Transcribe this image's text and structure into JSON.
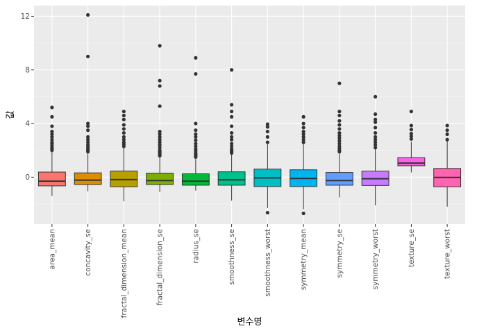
{
  "chart_data": {
    "type": "boxplot",
    "xlabel": "변수명",
    "ylabel": "값",
    "ylim": [
      -3.5,
      12.8
    ],
    "yticks": [
      0,
      4,
      8,
      12
    ],
    "grid": true,
    "legend": "none",
    "categories": [
      "area_mean",
      "concavity_se",
      "fractal_dimension_mean",
      "fractal_dimension_se",
      "radius_se",
      "smoothness_se",
      "smoothness_worst",
      "symmetry_mean",
      "symmetry_se",
      "symmetry_worst",
      "texture_se",
      "texture_worst"
    ],
    "colors": [
      "#F8766D",
      "#DE8C00",
      "#B79F00",
      "#7CAE00",
      "#00BA38",
      "#00C08B",
      "#00BFC4",
      "#00B4F0",
      "#619CFF",
      "#C77CFF",
      "#F564E3",
      "#FF64B0"
    ],
    "boxes": [
      {
        "whisker_low": -1.4,
        "q1": -0.65,
        "median": -0.3,
        "q3": 0.38,
        "whisker_high": 1.95,
        "outliers": [
          2.0,
          2.1,
          2.2,
          2.35,
          2.5,
          2.6,
          2.8,
          3.0,
          3.2,
          3.4,
          3.8,
          4.5,
          5.2
        ]
      },
      {
        "whisker_low": -1.05,
        "q1": -0.55,
        "median": -0.22,
        "q3": 0.32,
        "whisker_high": 1.85,
        "outliers": [
          1.9,
          2.0,
          2.1,
          2.25,
          2.4,
          2.6,
          2.8,
          3.0,
          3.5,
          3.8,
          4.0,
          9.0,
          12.1
        ]
      },
      {
        "whisker_low": -1.8,
        "q1": -0.72,
        "median": -0.18,
        "q3": 0.46,
        "whisker_high": 2.2,
        "outliers": [
          2.3,
          2.45,
          2.6,
          2.8,
          3.0,
          3.3,
          3.6,
          3.9,
          4.3,
          4.6,
          4.9
        ]
      },
      {
        "whisker_low": -1.1,
        "q1": -0.55,
        "median": -0.25,
        "q3": 0.3,
        "whisker_high": 1.5,
        "outliers": [
          1.6,
          1.7,
          1.8,
          1.9,
          2.0,
          2.2,
          2.4,
          2.6,
          2.8,
          3.0,
          3.2,
          3.4,
          5.3,
          6.8,
          7.2,
          9.8
        ]
      },
      {
        "whisker_low": -1.0,
        "q1": -0.6,
        "median": -0.3,
        "q3": 0.25,
        "whisker_high": 1.35,
        "outliers": [
          1.5,
          1.6,
          1.7,
          1.8,
          1.95,
          2.1,
          2.3,
          2.5,
          2.75,
          3.0,
          3.2,
          3.5,
          4.0,
          7.7,
          8.9
        ]
      },
      {
        "whisker_low": -1.75,
        "q1": -0.6,
        "median": -0.2,
        "q3": 0.4,
        "whisker_high": 1.75,
        "outliers": [
          1.8,
          1.9,
          2.0,
          2.1,
          2.3,
          2.5,
          2.8,
          3.0,
          3.3,
          3.8,
          4.5,
          4.9,
          5.4,
          8.0
        ]
      },
      {
        "whisker_low": -2.3,
        "q1": -0.7,
        "median": -0.05,
        "q3": 0.6,
        "whisker_high": 2.45,
        "outliers": [
          -2.65,
          2.6,
          3.0,
          3.4,
          3.75,
          3.95
        ]
      },
      {
        "whisker_low": -2.4,
        "q1": -0.7,
        "median": -0.1,
        "q3": 0.55,
        "whisker_high": 2.5,
        "outliers": [
          -2.7,
          2.6,
          2.8,
          3.0,
          3.2,
          3.4,
          3.7,
          4.0,
          4.5
        ]
      },
      {
        "whisker_low": -1.5,
        "q1": -0.6,
        "median": -0.25,
        "q3": 0.35,
        "whisker_high": 1.8,
        "outliers": [
          1.9,
          2.0,
          2.15,
          2.3,
          2.5,
          2.7,
          2.9,
          3.1,
          3.3,
          3.6,
          3.9,
          4.2,
          4.6,
          4.9,
          7.0
        ]
      },
      {
        "whisker_low": -2.1,
        "q1": -0.62,
        "median": -0.12,
        "q3": 0.45,
        "whisker_high": 2.1,
        "outliers": [
          2.2,
          2.4,
          2.6,
          2.8,
          3.0,
          3.3,
          3.7,
          4.1,
          4.3,
          4.7,
          6.0
        ]
      },
      {
        "whisker_low": 0.35,
        "q1": 0.85,
        "median": 1.05,
        "q3": 1.45,
        "whisker_high": 2.65,
        "outliers": [
          2.85,
          3.05,
          3.25,
          3.55,
          3.85,
          4.9
        ]
      },
      {
        "whisker_low": -2.2,
        "q1": -0.72,
        "median": -0.02,
        "q3": 0.65,
        "whisker_high": 2.7,
        "outliers": [
          2.8,
          3.2,
          3.5,
          3.85
        ]
      }
    ]
  }
}
